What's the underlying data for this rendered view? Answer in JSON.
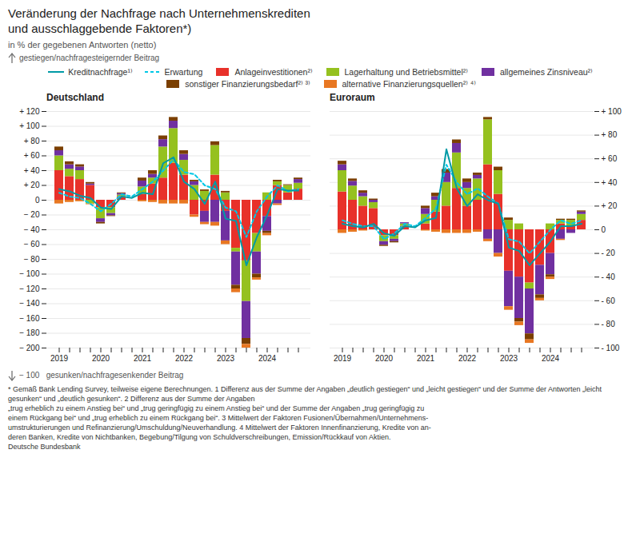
{
  "title": "Veränderung der Nachfrage nach Unternehmenskrediten\nund ausschlaggebende Faktoren*)",
  "subtitle": "in % der gegebenen Antworten (netto)",
  "annotations": [
    "gestiegen/nachfragesteigernder Beitrag",
    "− 100   gesunken/nachfragesenkender Beitrag",
    "* Gemäß Bank Lending Survey, teilweise eigene Berechnungen. 1 Differenz aus der Summe der Angaben „deutlich gestiegen“ und „leicht gestiegen“ und der Summe der Antworten „leicht gesunken“ und „deutlich gesunken“. 2 Differenz aus der Summe der Angaben\n„trug erheblich zu einem Anstieg bei“ und „trug geringfügig zu einem Anstieg bei“ und der Summe der Angaben „trug geringfügig zu\neinem Rückgang bei“ und „trug erheblich zu einem Rückgang bei“. 3 Mittelwert der Faktoren Fusionen/Übernahmen/Unternehmens-\numstrukturierungen und Refinanzierung/Umschuldung/Neuverhandlung. 4 Mittelwert der Faktoren Innenfinanzierung, Kredite von an-\nderen Banken, Kredite von Nichtbanken, Begebung/Tilgung von Schuldverschreibungen, Emission/Rückkauf von Aktien.\nDeutsche Bundesbank"
  ],
  "chart_data": [
    {
      "type": "bar",
      "title": "Deutschland",
      "stacked": true,
      "grid": true,
      "legend": "top",
      "categories": [
        "2019",
        null,
        null,
        null,
        "2020",
        null,
        null,
        null,
        "2021",
        null,
        null,
        null,
        "2022",
        null,
        null,
        null,
        "2023",
        null,
        null,
        null,
        "2024",
        null,
        null,
        null
      ],
      "ylim": [
        -200,
        120
      ],
      "yticks": [
        {
          "value": -200,
          "label": "− 200"
        },
        {
          "value": -180,
          "label": "− 180"
        },
        {
          "value": -160,
          "label": "− 160"
        },
        {
          "value": -140,
          "label": "− 140"
        },
        {
          "value": -120,
          "label": "− 120"
        },
        {
          "value": -100,
          "label": "− 100"
        },
        {
          "value": -80,
          "label": "− 80"
        },
        {
          "value": -60,
          "label": "− 60"
        },
        {
          "value": -40,
          "label": "− 40"
        },
        {
          "value": -20,
          "label": "− 20"
        },
        0,
        {
          "value": 20,
          "label": "+ 20"
        },
        {
          "value": 40,
          "label": "+ 40"
        },
        {
          "value": 60,
          "label": "+ 60"
        },
        {
          "value": 80,
          "label": "+ 80"
        },
        {
          "value": 100,
          "label": "+ 100"
        },
        {
          "value": 120,
          "label": "+ 120"
        }
      ],
      "series": [
        {
          "name": "Kreditnachfrage¹⁾",
          "type": "line",
          "line_style": "solid",
          "color": "#009aa6",
          "values": [
            15,
            12,
            6,
            3,
            -10,
            -12,
            5,
            3,
            10,
            8,
            50,
            58,
            25,
            15,
            -5,
            25,
            -25,
            -28,
            -88,
            -50,
            -20,
            15,
            13,
            13
          ]
        },
        {
          "name": "Erwartung",
          "type": "line",
          "line_style": "dashed",
          "color": "#00c8e6",
          "values": [
            10,
            5,
            3,
            -5,
            -15,
            -5,
            8,
            5,
            15,
            25,
            40,
            55,
            38,
            35,
            20,
            15,
            -10,
            -15,
            -50,
            -15,
            5,
            20,
            12,
            15
          ]
        },
        {
          "name": "Anlageinvestitionen²⁾",
          "type": "bar",
          "color": "#e8312a",
          "values": [
            40,
            32,
            28,
            20,
            -10,
            -10,
            5,
            0,
            8,
            22,
            30,
            50,
            34,
            -20,
            -15,
            34,
            -15,
            -65,
            -82,
            -45,
            -22,
            20,
            10,
            15
          ]
        },
        {
          "name": "Lagerhaltung und Betriebsmittel²⁾",
          "type": "bar",
          "color": "#95c11f",
          "values": [
            20,
            10,
            12,
            -5,
            -15,
            -8,
            2,
            0,
            10,
            8,
            42,
            47,
            20,
            20,
            12,
            40,
            10,
            -5,
            -55,
            -25,
            10,
            5,
            10,
            8
          ]
        },
        {
          "name": "allgemeines Zinsniveau²⁾",
          "type": "bar",
          "color": "#7030a0",
          "values": [
            7,
            6,
            5,
            2,
            -5,
            -3,
            2,
            0,
            8,
            5,
            10,
            10,
            8,
            5,
            -15,
            -30,
            -40,
            -45,
            -50,
            -30,
            -20,
            -5,
            0,
            5
          ]
        },
        {
          "name": "sonstiger Finanzierungsbedarf²⁾ ³⁾",
          "type": "bar",
          "color": "#7b3f00",
          "values": [
            5,
            4,
            3,
            2,
            -2,
            -1,
            1,
            0,
            4,
            5,
            5,
            5,
            5,
            2,
            2,
            5,
            2,
            -5,
            -8,
            -5,
            -3,
            2,
            1,
            2
          ]
        },
        {
          "name": "alternative Finanzierungsquellen²⁾ ⁴⁾",
          "type": "bar",
          "color": "#e87722",
          "values": [
            -5,
            -3,
            -2,
            -1,
            0,
            0,
            0,
            0,
            -2,
            -3,
            -5,
            -5,
            -5,
            -3,
            -3,
            -5,
            -5,
            -5,
            -5,
            -3,
            -3,
            -2,
            0,
            0
          ]
        }
      ]
    },
    {
      "type": "bar",
      "title": "Euroraum",
      "stacked": true,
      "grid": true,
      "tick_labels": "x",
      "categories": [
        "2019",
        null,
        null,
        null,
        "2020",
        null,
        null,
        null,
        "2021",
        null,
        null,
        null,
        "2022",
        null,
        null,
        null,
        "2023",
        null,
        null,
        null,
        "2024",
        null,
        null,
        null
      ],
      "ylim": [
        -100,
        100
      ],
      "yticks": [
        -100,
        -80,
        -60,
        -40,
        -20,
        0,
        20,
        40,
        60,
        80,
        100
      ],
      "y2lim": [
        -100,
        100
      ],
      "y2ticks": [
        {
          "value": -100,
          "label": "- 100"
        },
        {
          "value": -80,
          "label": "- 80"
        },
        {
          "value": -60,
          "label": "- 60"
        },
        {
          "value": -40,
          "label": "- 40"
        },
        {
          "value": -20,
          "label": "- 20"
        },
        0,
        {
          "value": 20,
          "label": "+ 20"
        },
        {
          "value": 40,
          "label": "+ 40"
        },
        {
          "value": 60,
          "label": "+ 60"
        },
        {
          "value": 80,
          "label": "+ 80"
        },
        {
          "value": 100,
          "label": "+ 100"
        }
      ],
      "series": [
        {
          "name": "Kreditnachfrage¹⁾",
          "type": "line",
          "line_style": "solid",
          "color": "#009aa6",
          "values": [
            5,
            3,
            2,
            5,
            -3,
            -5,
            3,
            2,
            8,
            10,
            68,
            35,
            20,
            30,
            25,
            22,
            -15,
            -18,
            -30,
            -20,
            -10,
            3,
            3,
            5
          ]
        },
        {
          "name": "Erwartung",
          "type": "line",
          "line_style": "dashed",
          "color": "#00c8e6",
          "values": [
            8,
            5,
            3,
            3,
            -8,
            -3,
            5,
            3,
            10,
            18,
            55,
            40,
            30,
            35,
            28,
            22,
            -8,
            -10,
            -20,
            -10,
            0,
            8,
            5,
            8
          ]
        },
        {
          "name": "Anlageinvestitionen²⁾",
          "type": "bar",
          "color": "#e8312a",
          "values": [
            32,
            25,
            20,
            18,
            -5,
            -5,
            3,
            0,
            5,
            15,
            20,
            35,
            20,
            25,
            55,
            30,
            -35,
            -40,
            -45,
            -30,
            -20,
            5,
            3,
            8
          ]
        },
        {
          "name": "Lagerhaltung und Betriebsmittel²⁾",
          "type": "bar",
          "color": "#95c11f",
          "values": [
            18,
            12,
            8,
            5,
            -5,
            -3,
            2,
            0,
            8,
            10,
            20,
            30,
            15,
            18,
            38,
            20,
            8,
            5,
            -5,
            0,
            5,
            3,
            5,
            5
          ]
        },
        {
          "name": "allgemeines Zinsniveau²⁾",
          "type": "bar",
          "color": "#7030a0",
          "values": [
            5,
            4,
            3,
            2,
            -3,
            -2,
            1,
            0,
            5,
            3,
            8,
            8,
            5,
            3,
            -8,
            -20,
            -30,
            -35,
            -38,
            -25,
            -18,
            -8,
            -3,
            2
          ]
        },
        {
          "name": "sonstiger Finanzierungsbedarf²⁾ ³⁾",
          "type": "bar",
          "color": "#7b3f00",
          "values": [
            3,
            2,
            2,
            1,
            -1,
            -1,
            0,
            0,
            2,
            3,
            3,
            3,
            3,
            2,
            2,
            3,
            2,
            -3,
            -5,
            -3,
            -2,
            1,
            1,
            1
          ]
        },
        {
          "name": "alternative Finanzierungsquellen²⁾ ⁴⁾",
          "type": "bar",
          "color": "#e87722",
          "values": [
            -3,
            -2,
            -1,
            0,
            0,
            0,
            0,
            0,
            -1,
            -2,
            -3,
            -3,
            -3,
            -2,
            -2,
            -3,
            -3,
            -3,
            -3,
            -2,
            -2,
            -1,
            0,
            0
          ]
        }
      ]
    }
  ]
}
